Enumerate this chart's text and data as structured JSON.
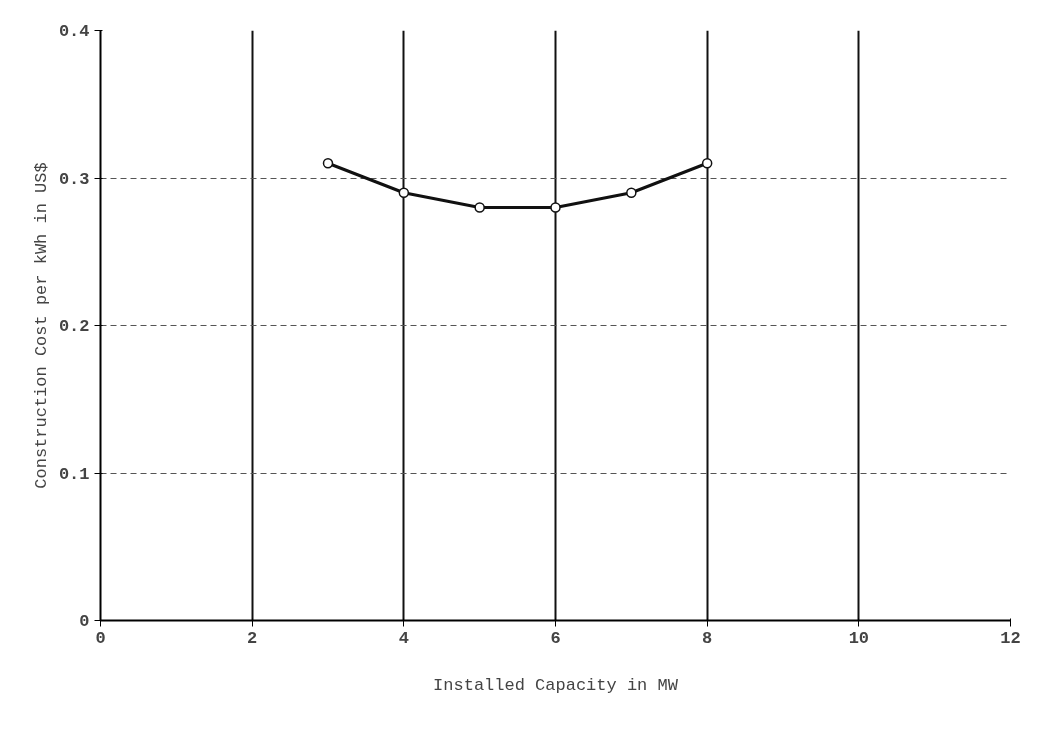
{
  "chart_data": {
    "type": "line",
    "xlabel": "Installed Capacity in MW",
    "ylabel": "Construction Cost per kWh in US$",
    "x": [
      3,
      4,
      5,
      6,
      7,
      8
    ],
    "series": [
      {
        "color": "#111111",
        "values": [
          0.31,
          0.29,
          0.28,
          0.28,
          0.29,
          0.31
        ]
      }
    ],
    "xlim": [
      0,
      12
    ],
    "xticks": [
      0,
      2,
      4,
      6,
      8,
      10,
      12
    ],
    "ylim": [
      0,
      0.4
    ],
    "yticks": [
      0,
      0.1,
      0.2,
      0.3,
      0.4
    ],
    "grid": true,
    "marker": "circle",
    "line_style": "solid"
  }
}
